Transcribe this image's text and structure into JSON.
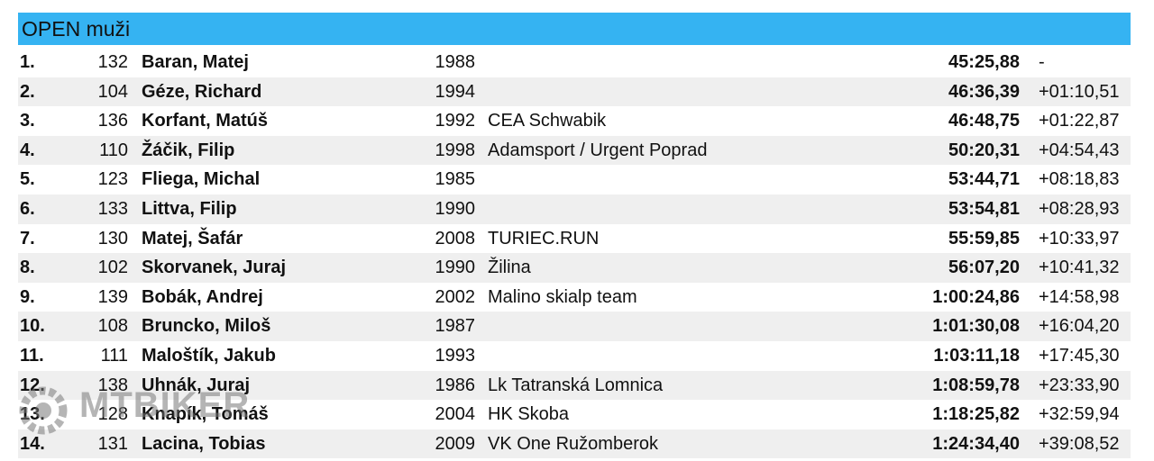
{
  "header": {
    "title": "OPEN muži"
  },
  "watermark": "MTBIKER",
  "table": {
    "rows": [
      {
        "rank": "1.",
        "bib": 132,
        "name": "Baran, Matej",
        "year": 1988,
        "time": "45:25,88",
        "diff": "-"
      },
      {
        "rank": "2.",
        "bib": 104,
        "name": "Géze, Richard",
        "year": 1994,
        "time": "46:36,39",
        "diff": "+01:10,51"
      },
      {
        "rank": "3.",
        "bib": 136,
        "name": "Korfant, Matúš",
        "year": 1992,
        "club": "CEA Schwabik",
        "time": "46:48,75",
        "diff": "+01:22,87"
      },
      {
        "rank": "4.",
        "bib": 110,
        "name": "Žáčik, Filip",
        "year": 1998,
        "club": "Adamsport / Urgent Poprad",
        "time": "50:20,31",
        "diff": "+04:54,43"
      },
      {
        "rank": "5.",
        "bib": 123,
        "name": "Fliega, Michal",
        "year": 1985,
        "time": "53:44,71",
        "diff": "+08:18,83"
      },
      {
        "rank": "6.",
        "bib": 133,
        "name": "Littva, Filip",
        "year": 1990,
        "time": "53:54,81",
        "diff": "+08:28,93"
      },
      {
        "rank": "7.",
        "bib": 130,
        "name": "Matej, Šafár",
        "year": 2008,
        "club": "TURIEC.RUN",
        "time": "55:59,85",
        "diff": "+10:33,97"
      },
      {
        "rank": "8.",
        "bib": 102,
        "name": "Skorvanek, Juraj",
        "year": 1990,
        "club": "Žilina",
        "time": "56:07,20",
        "diff": "+10:41,32"
      },
      {
        "rank": "9.",
        "bib": 139,
        "name": "Bobák, Andrej",
        "year": 2002,
        "club": "Malino skialp team",
        "time": "1:00:24,86",
        "diff": "+14:58,98"
      },
      {
        "rank": "10.",
        "bib": 108,
        "name": "Bruncko, Miloš",
        "year": 1987,
        "time": "1:01:30,08",
        "diff": "+16:04,20"
      },
      {
        "rank": "11.",
        "bib": 111,
        "name": "Maloštík, Jakub",
        "year": 1993,
        "time": "1:03:11,18",
        "diff": "+17:45,30"
      },
      {
        "rank": "12.",
        "bib": 138,
        "name": "Uhnák, Juraj",
        "year": 1986,
        "club": "Lk Tatranská Lomnica",
        "time": "1:08:59,78",
        "diff": "+23:33,90"
      },
      {
        "rank": "13.",
        "bib": 128,
        "name": "Knapík, Tomáš",
        "year": 2004,
        "club": "HK Skoba",
        "time": "1:18:25,82",
        "diff": "+32:59,94"
      },
      {
        "rank": "14.",
        "bib": 131,
        "name": "Lacina, Tobias",
        "year": 2009,
        "club": "VK One Ružomberok",
        "time": "1:24:34,40",
        "diff": "+39:08,52"
      }
    ]
  }
}
